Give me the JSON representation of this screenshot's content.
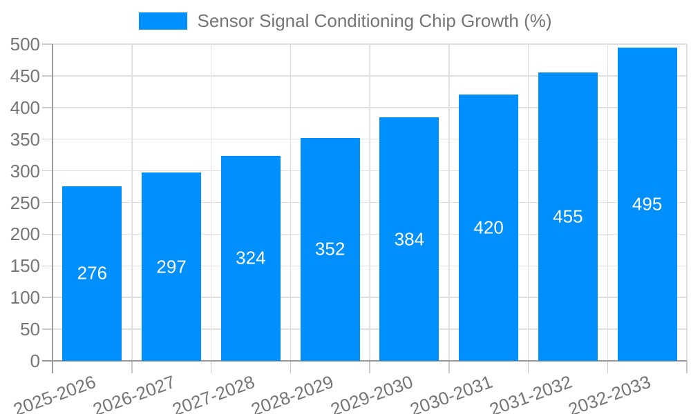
{
  "legend": {
    "label": "Sensor Signal Conditioning Chip Growth (%)",
    "swatch_color": "#008FFB"
  },
  "colors": {
    "bar": "#008FFB",
    "grid": "#e0e0e0",
    "axis_line": "#9a9a9a",
    "tick": "#c9c9c9",
    "axis_text": "#757575",
    "value_label": "#ffffff",
    "background": "#ffffff"
  },
  "chart_data": {
    "type": "bar",
    "title": "Sensor Signal Conditioning Chip Growth (%)",
    "categories": [
      "2025-2026",
      "2026-2027",
      "2027-2028",
      "2028-2029",
      "2029-2030",
      "2030-2031",
      "2031-2032",
      "2032-2033"
    ],
    "values": [
      276,
      297,
      324,
      352,
      384,
      420,
      455,
      495
    ],
    "xlabel": "",
    "ylabel": "",
    "ylim": [
      0,
      500
    ],
    "yticks": [
      0,
      50,
      100,
      150,
      200,
      250,
      300,
      350,
      400,
      450,
      500
    ],
    "grid": "both",
    "legend_position": "top-center",
    "value_labels": "inside-center",
    "x_label_rotation_deg": -20
  }
}
